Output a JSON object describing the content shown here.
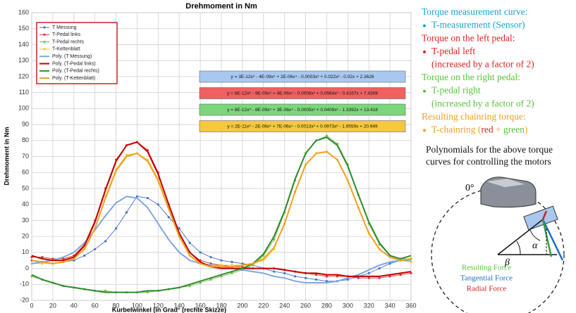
{
  "chart_data": {
    "type": "line",
    "title": "Drehmoment in Nm",
    "y_label": "Drehmoment in Nm",
    "x_label": "Kurbelwinkel (in Grad° (rechte Skizze)",
    "x": [
      0,
      10,
      20,
      30,
      40,
      50,
      60,
      70,
      80,
      90,
      100,
      110,
      120,
      130,
      140,
      150,
      160,
      170,
      180,
      190,
      200,
      210,
      220,
      230,
      240,
      250,
      260,
      270,
      280,
      290,
      300,
      310,
      320,
      330,
      340,
      350,
      360
    ],
    "series": [
      {
        "name": "T Messung",
        "color": "#4472c4",
        "style": "markers",
        "values": [
          5,
          4,
          3,
          4,
          5,
          8,
          12,
          17,
          25,
          35,
          45,
          44,
          40,
          32,
          25,
          16,
          10,
          7,
          5,
          4,
          3,
          2,
          0,
          -2,
          -3,
          -5,
          -6,
          -7,
          -8,
          -8,
          -7,
          -5,
          -3,
          0,
          3,
          5,
          6
        ]
      },
      {
        "name": "T-Pedal links",
        "color": "#e03030",
        "style": "markers",
        "values": [
          7,
          7,
          6,
          6,
          8,
          15,
          30,
          50,
          68,
          77,
          79,
          74,
          60,
          40,
          22,
          10,
          5,
          3,
          2,
          1,
          1,
          0,
          0,
          0,
          -1,
          -2,
          -3,
          -4,
          -5,
          -5,
          -5,
          -6,
          -6,
          -6,
          -5,
          -4,
          -3
        ]
      },
      {
        "name": "T-Pedal rechts",
        "color": "#70c040",
        "style": "markers",
        "values": [
          -5,
          -7,
          -9,
          -11,
          -12,
          -13,
          -14,
          -14,
          -15,
          -15,
          -15,
          -15,
          -14,
          -13,
          -12,
          -11,
          -9,
          -7,
          -5,
          -3,
          -1,
          2,
          8,
          18,
          35,
          55,
          72,
          80,
          83,
          78,
          65,
          46,
          28,
          15,
          8,
          6,
          6
        ]
      },
      {
        "name": "T-Kettenblatt",
        "color": "#f5c518",
        "style": "markers",
        "values": [
          3,
          3,
          3,
          4,
          6,
          12,
          25,
          45,
          62,
          71,
          72,
          68,
          56,
          38,
          20,
          8,
          3,
          2,
          2,
          2,
          2,
          3,
          5,
          12,
          28,
          48,
          65,
          72,
          73,
          68,
          55,
          38,
          22,
          12,
          7,
          5,
          4
        ]
      },
      {
        "name": "Poly. (T Messung)",
        "color": "#7fa8e0",
        "style": "line",
        "values": [
          3,
          4,
          5,
          7,
          10,
          16,
          24,
          33,
          41,
          45,
          44,
          38,
          28,
          18,
          10,
          5,
          3,
          2,
          1,
          0,
          -1,
          -2,
          -3,
          -5,
          -6,
          -8,
          -9,
          -9,
          -9,
          -8,
          -6,
          -4,
          -1,
          2,
          4,
          5,
          5
        ]
      },
      {
        "name": "Poly. (T-Pedal links)",
        "color": "#c00000",
        "style": "line",
        "values": [
          8,
          6,
          5,
          5,
          7,
          14,
          29,
          49,
          67,
          77,
          79,
          73,
          59,
          40,
          22,
          10,
          4,
          1,
          0,
          0,
          0,
          0,
          0,
          0,
          -1,
          -2,
          -3,
          -3,
          -4,
          -4,
          -5,
          -5,
          -5,
          -5,
          -4,
          -3,
          -2
        ]
      },
      {
        "name": "Poly. (T-Pedal rechts)",
        "color": "#2e8b2e",
        "style": "line",
        "values": [
          -4,
          -7,
          -9,
          -11,
          -12,
          -13,
          -14,
          -15,
          -15,
          -15,
          -15,
          -14,
          -14,
          -13,
          -12,
          -10,
          -8,
          -6,
          -4,
          -2,
          0,
          3,
          9,
          20,
          36,
          56,
          72,
          80,
          82,
          77,
          64,
          46,
          29,
          16,
          8,
          6,
          8
        ]
      },
      {
        "name": "Poly. (T-Kettenblatt)",
        "color": "#f0a020",
        "style": "line",
        "values": [
          5,
          4,
          3,
          4,
          6,
          12,
          25,
          44,
          61,
          70,
          72,
          67,
          55,
          37,
          20,
          8,
          3,
          1,
          1,
          1,
          2,
          3,
          6,
          13,
          28,
          48,
          65,
          72,
          73,
          68,
          55,
          38,
          22,
          12,
          7,
          5,
          6
        ]
      }
    ],
    "xlim": [
      0,
      360
    ],
    "xticks": [
      0,
      20,
      40,
      60,
      80,
      100,
      120,
      140,
      160,
      180,
      200,
      220,
      240,
      260,
      280,
      300,
      320,
      340,
      360
    ],
    "ylim": [
      -20,
      160
    ],
    "yticks": [
      -20,
      -10,
      0,
      10,
      20,
      30,
      40,
      50,
      60,
      70,
      80,
      90,
      100,
      110,
      120,
      130,
      140,
      150,
      160
    ],
    "grid": true,
    "legend": "upper left",
    "equations": [
      {
        "text": "y = 3E-12x⁶ - 4E-09x⁵ + 2E-06x⁴ - 0.0003x³ + 0.022x² - 0.02x + 2.3626",
        "color": "#a9c8f0"
      },
      {
        "text": "y = 8E-12x⁶ - 9E-09x⁵ + 4E-06x⁴ - 0.0008x³ + 0.0564x² - 0.4167x + 7.4308",
        "color": "#f06060"
      },
      {
        "text": "y = 8E-12x⁶ - 8E-09x⁵ + 3E-06x⁴ - 0.0005x³ + 0.0409x² - 1.3392x + 13.418",
        "color": "#7dd67d"
      },
      {
        "text": "y = 2E-11x⁶ - 2E-08x⁵ + 7E-06x⁴ - 0.0013x³ + 0.0973x² - 1.9559x + 20.949",
        "color": "#f5c842"
      }
    ]
  },
  "side_panel": {
    "lines": [
      {
        "text": "Torque measurement curve:",
        "color": "#1aa0d8",
        "bullet": false
      },
      {
        "text": "T-measurement (Sensor)",
        "color": "#1aa0d8",
        "bullet": true
      },
      {
        "text": "Torque on the left pedal:",
        "color": "#e02020",
        "bullet": false
      },
      {
        "text": "T-pedal left",
        "color": "#e02020",
        "bullet": true
      },
      {
        "text": "(increased by a factor of 2)",
        "color": "#e02020",
        "bullet": false
      },
      {
        "text": "Torque on the right pedal:",
        "color": "#5cc040",
        "bullet": false
      },
      {
        "text": "T-pedal right",
        "color": "#5cc040",
        "bullet": true
      },
      {
        "text": "(increased by a factor of 2)",
        "color": "#5cc040",
        "bullet": false
      }
    ],
    "chainring_heading": "Resulting chainring torque:",
    "chainring_parts": [
      "T-chainring (",
      "red",
      " + ",
      "green",
      ")"
    ],
    "polynomials_note": [
      "Polynomials for the above torque",
      "curves for controlling the motors"
    ]
  },
  "diagram": {
    "zero_label": "0°",
    "alpha": "α",
    "beta": "β",
    "forces": [
      "Resulting Force",
      "Tangential Force",
      "Radial Force"
    ]
  }
}
